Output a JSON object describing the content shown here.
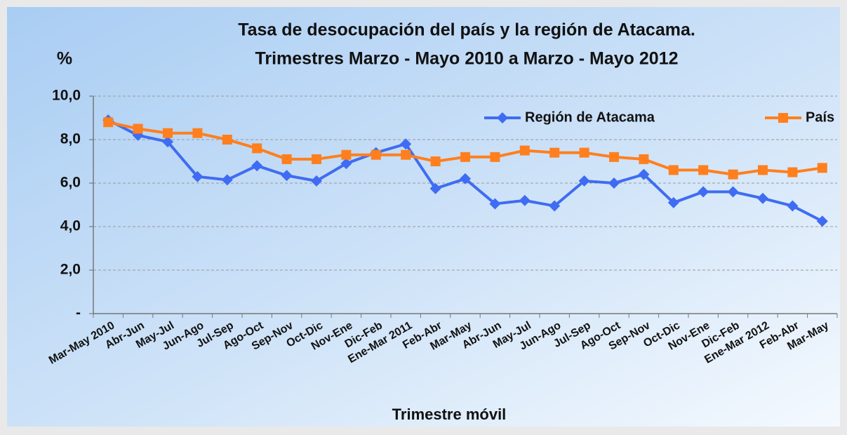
{
  "chart_data": {
    "type": "line",
    "title": [
      "Tasa de desocupación del país y la región de Atacama.",
      "Trimestres Marzo - Mayo 2010  a  Marzo - Mayo 2012"
    ],
    "y_label": "%",
    "x_label": "Trimestre móvil",
    "categories": [
      "Mar-May 2010",
      "Abr-Jun",
      "May-Jul",
      "Jun-Ago",
      "Jul-Sep",
      "Ago-Oct",
      "Sep-Nov",
      "Oct-Dic",
      "Nov-Ene",
      "Dic-Feb",
      "Ene-Mar 2011",
      "Feb-Abr",
      "Mar-May",
      "Abr-Jun",
      "May-Jul",
      "Jun-Ago",
      "Jul-Sep",
      "Ago-Oct",
      "Sep-Nov",
      "Oct-Dic",
      "Nov-Ene",
      "Dic-Feb",
      "Ene-Mar 2012",
      "Feb-Abr",
      "Mar-May"
    ],
    "series": [
      {
        "name": "Región de Atacama",
        "color": "#3f6cf2",
        "marker": "diamond",
        "values": [
          8.9,
          8.2,
          7.9,
          6.3,
          6.15,
          6.8,
          6.35,
          6.1,
          6.9,
          7.4,
          7.8,
          5.75,
          6.2,
          5.05,
          5.2,
          4.95,
          6.1,
          6.0,
          6.4,
          5.1,
          5.6,
          5.6,
          5.3,
          4.95,
          4.25
        ]
      },
      {
        "name": "País",
        "color": "#ff7f1e",
        "marker": "square",
        "values": [
          8.8,
          8.5,
          8.3,
          8.3,
          8.0,
          7.6,
          7.1,
          7.1,
          7.3,
          7.3,
          7.3,
          7.0,
          7.2,
          7.2,
          7.5,
          7.4,
          7.4,
          7.2,
          7.1,
          6.6,
          6.6,
          6.4,
          6.6,
          6.5,
          6.7
        ]
      }
    ],
    "ylim": [
      0,
      10
    ],
    "yticks": [
      {
        "value": 0,
        "label": "-"
      },
      {
        "value": 2,
        "label": "2,0"
      },
      {
        "value": 4,
        "label": "4,0"
      },
      {
        "value": 6,
        "label": "6,0"
      },
      {
        "value": 8,
        "label": "8,0"
      },
      {
        "value": 10,
        "label": "10,0"
      }
    ],
    "grid": true,
    "legend": "upper right"
  }
}
